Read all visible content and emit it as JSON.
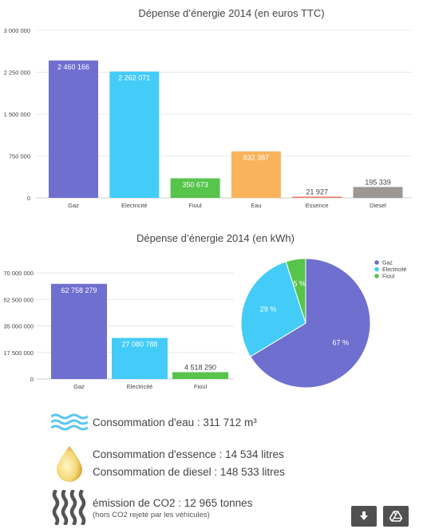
{
  "chart_data": [
    {
      "type": "bar",
      "title": "Dépense d’énergie 2014 (en euros TTC)",
      "categories": [
        "Gaz",
        "Electricité",
        "Fioul",
        "Eau",
        "Essence",
        "Diesel"
      ],
      "values": [
        2460166,
        2262071,
        350673,
        832387,
        21927,
        195339
      ],
      "value_labels": [
        "2 460 166",
        "2 262 071",
        "350 673",
        "832 387",
        "21 927",
        "195 339"
      ],
      "colors": [
        "#6f6fcf",
        "#43ccf8",
        "#57c44b",
        "#f9b35a",
        "#f3786a",
        "#9c9792"
      ],
      "ylim": [
        0,
        3000000
      ],
      "yticks": [
        0,
        750000,
        1500000,
        2250000,
        3000000
      ],
      "ytick_labels": [
        "0",
        "750 000",
        "1 500 000",
        "2 250 000",
        "3 000 000"
      ],
      "grid": true
    },
    {
      "type": "bar",
      "title": "Dépense d’énergie 2014 (en kWh)",
      "categories": [
        "Gaz",
        "Electricité",
        "Fioul"
      ],
      "values": [
        62758279,
        27080788,
        4518290
      ],
      "value_labels": [
        "62 758 279",
        "27 080 788",
        "4 518 290"
      ],
      "colors": [
        "#6f6fcf",
        "#43ccf8",
        "#57c44b"
      ],
      "ylim": [
        0,
        70000000
      ],
      "yticks": [
        0,
        17500000,
        35000000,
        52500000,
        70000000
      ],
      "ytick_labels": [
        "0",
        "17 500 000",
        "35 000 000",
        "52 500 000",
        "70 000 000"
      ],
      "grid": true
    },
    {
      "type": "pie",
      "categories": [
        "Gaz",
        "Electricité",
        "Fioul"
      ],
      "values": [
        67,
        29,
        5
      ],
      "labels": [
        "67 %",
        "29 %",
        "5 %"
      ],
      "colors": [
        "#6f6fcf",
        "#43ccf8",
        "#57c44b"
      ],
      "legend": [
        "Gaz",
        "Electricité",
        "Fioul"
      ],
      "legend_position": "top-right"
    }
  ],
  "info": {
    "eau": "Consommation d'eau : 311 712 m³",
    "essence": "Consommation d'essence : 14 534 litres",
    "diesel": "Consommation de diesel : 148 533 litres",
    "co2": "émission de CO2 : 12 965 tonnes",
    "co2_note": "(hors CO2 rejeté par les véhicules)"
  },
  "icons": {
    "eau": "water-waves-icon",
    "essence": "fuel-drop-icon",
    "co2": "smoke-waves-icon",
    "download": "download-arrow-icon",
    "drive": "google-drive-icon"
  }
}
